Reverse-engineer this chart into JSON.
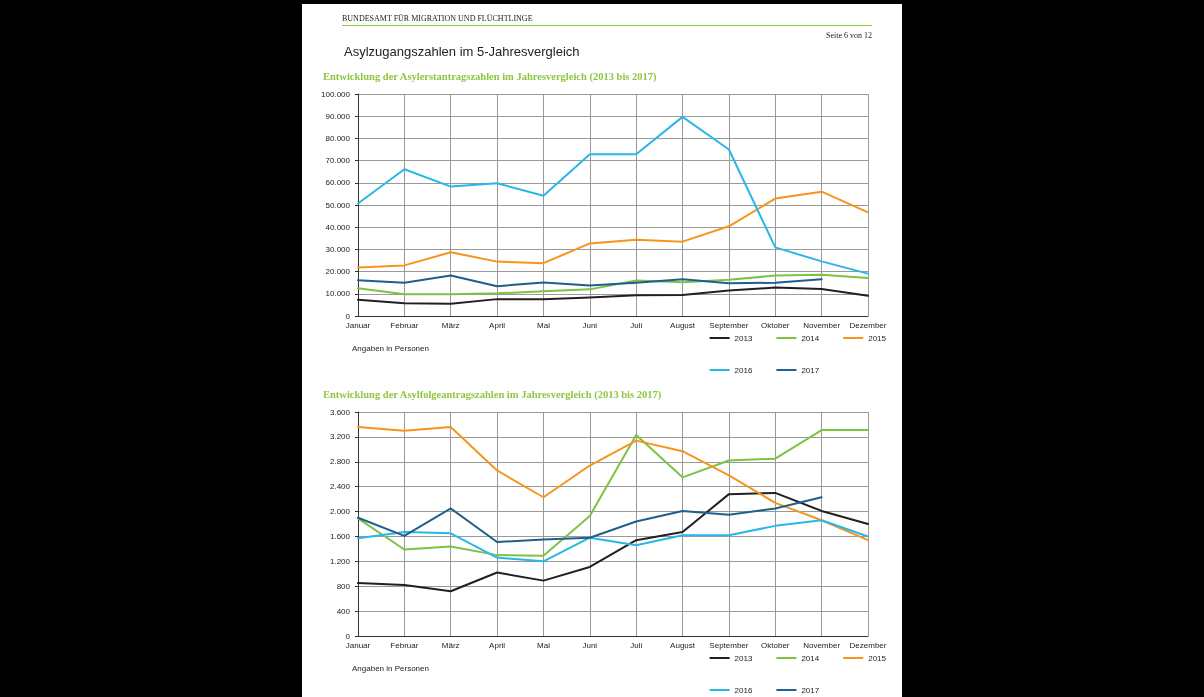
{
  "chart_data": [
    {
      "type": "line",
      "title": "Entwicklung der Asylerstantragszahlen im Jahresvergleich (2013 bis 2017)",
      "annotations": [
        "BUNDESAMT FÜR MIGRATION UND FLÜCHTLINGE",
        "Seite 6 von 12",
        "Asylzugangszahlen im 5-Jahresvergleich",
        "Angaben in Personen"
      ],
      "categories": [
        "Januar",
        "Februar",
        "März",
        "April",
        "Mai",
        "Juni",
        "Juli",
        "August",
        "September",
        "Oktober",
        "November",
        "Dezember"
      ],
      "series": [
        {
          "name": "2013",
          "color": "#231f20",
          "values": [
            7300,
            5700,
            5500,
            7600,
            7500,
            8300,
            9400,
            9500,
            11500,
            12800,
            12200,
            9100
          ]
        },
        {
          "name": "2014",
          "color": "#7dc242",
          "values": [
            12500,
            9800,
            9800,
            10200,
            11100,
            12000,
            16000,
            15200,
            16300,
            18200,
            18600,
            17100
          ]
        },
        {
          "name": "2015",
          "color": "#f7941d",
          "values": [
            21900,
            22800,
            28700,
            24500,
            23800,
            32700,
            34400,
            33500,
            40400,
            52900,
            56000,
            46700
          ]
        },
        {
          "name": "2016",
          "color": "#29b6e8",
          "values": [
            50700,
            66100,
            58300,
            59800,
            54200,
            72900,
            72900,
            89700,
            75000,
            30900,
            24600,
            19100
          ]
        },
        {
          "name": "2017",
          "color": "#1f5f8b",
          "values": [
            16100,
            15000,
            18200,
            13400,
            15100,
            13700,
            15000,
            16600,
            14700,
            15000,
            16500,
            null
          ]
        }
      ],
      "ylim": [
        0,
        100000
      ],
      "yticks": [
        0,
        {
          "value": 10000,
          "label": "10.000"
        },
        {
          "value": 20000,
          "label": "20.000"
        },
        {
          "value": 30000,
          "label": "30.000"
        },
        {
          "value": 40000,
          "label": "40.000"
        },
        {
          "value": 50000,
          "label": "50.000"
        },
        {
          "value": 60000,
          "label": "60.000"
        },
        {
          "value": 70000,
          "label": "70.000"
        },
        {
          "value": 80000,
          "label": "80.000"
        },
        {
          "value": 90000,
          "label": "90.000"
        },
        {
          "value": 100000,
          "label": "100.000"
        }
      ],
      "grid": true,
      "legend": "bottom right",
      "marker": "none",
      "line_style": "solid"
    },
    {
      "type": "line",
      "title": "Entwicklung der Asylfolgeantragszahlen im Jahresvergleich (2013 bis 2017)",
      "annotations": [
        "Angaben in Personen"
      ],
      "categories": [
        "Januar",
        "Februar",
        "März",
        "April",
        "Mai",
        "Juni",
        "Juli",
        "August",
        "September",
        "Oktober",
        "November",
        "Dezember"
      ],
      "series": [
        {
          "name": "2013",
          "color": "#231f20",
          "values": [
            850,
            820,
            720,
            1020,
            890,
            1110,
            1540,
            1670,
            2280,
            2300,
            2010,
            1800
          ]
        },
        {
          "name": "2014",
          "color": "#7dc242",
          "values": [
            1890,
            1390,
            1440,
            1300,
            1290,
            1930,
            3230,
            2550,
            2820,
            2850,
            3310,
            3310
          ]
        },
        {
          "name": "2015",
          "color": "#f7941d",
          "values": [
            3360,
            3300,
            3360,
            2660,
            2230,
            2740,
            3140,
            2970,
            2580,
            2140,
            1860,
            1540
          ]
        },
        {
          "name": "2016",
          "color": "#29b6e8",
          "values": [
            1570,
            1670,
            1650,
            1260,
            1200,
            1580,
            1460,
            1620,
            1620,
            1770,
            1860,
            1600
          ]
        },
        {
          "name": "2017",
          "color": "#1f5f8b",
          "values": [
            1900,
            1610,
            2050,
            1510,
            1550,
            1580,
            1840,
            2010,
            1950,
            2050,
            2230,
            null
          ]
        }
      ],
      "ylim": [
        0,
        3600
      ],
      "yticks": [
        0,
        400,
        800,
        {
          "value": 1200,
          "label": "1.200"
        },
        {
          "value": 1600,
          "label": "1.600"
        },
        {
          "value": 2000,
          "label": "2.000"
        },
        {
          "value": 2400,
          "label": "2.400"
        },
        {
          "value": 2800,
          "label": "2.800"
        },
        {
          "value": 3200,
          "label": "3.200"
        },
        {
          "value": 3600,
          "label": "3.600"
        }
      ],
      "grid": true,
      "legend": "bottom right",
      "marker": "none",
      "line_style": "solid"
    }
  ]
}
